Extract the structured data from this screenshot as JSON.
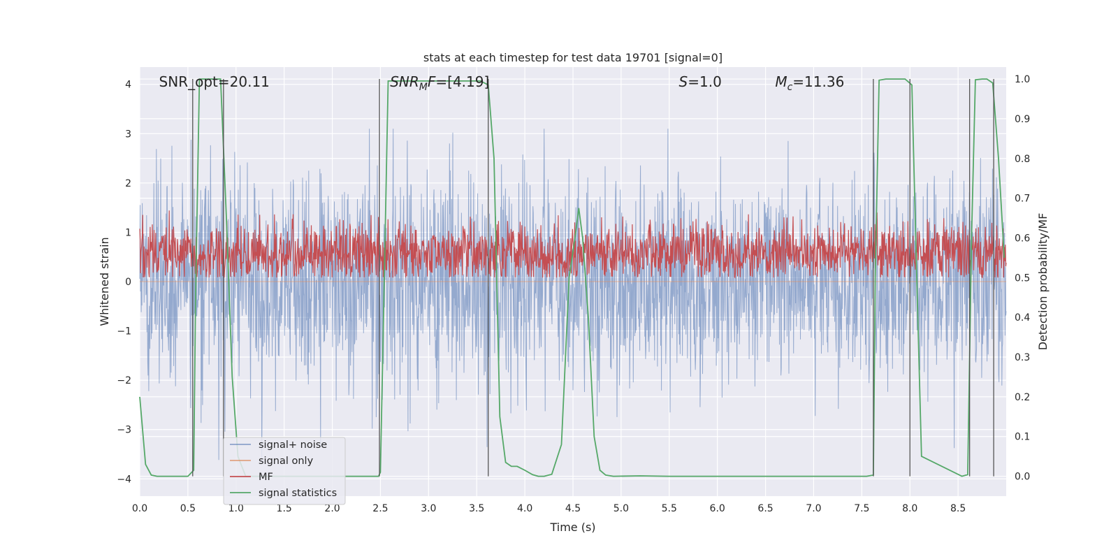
{
  "chart_data": {
    "type": "line",
    "title": "stats at each timestep for test data 19701 [signal=0]",
    "xlabel": "Time (s)",
    "ylabel_left": "Whitened strain",
    "ylabel_right": "Detection probability/MF",
    "xlim": [
      0.0,
      9.0
    ],
    "ylim_left": [
      -4.35,
      4.35
    ],
    "ylim_right": [
      -0.05,
      1.03
    ],
    "grid": true,
    "legend_position": "lower-left",
    "x_ticks": [
      "0.0",
      "0.5",
      "1.0",
      "1.5",
      "2.0",
      "2.5",
      "3.0",
      "3.5",
      "4.0",
      "4.5",
      "5.0",
      "5.5",
      "6.0",
      "6.5",
      "7.0",
      "7.5",
      "8.0",
      "8.5"
    ],
    "y_ticks_left": [
      "−4",
      "−3",
      "−2",
      "−1",
      "0",
      "1",
      "2",
      "3",
      "4"
    ],
    "y_ticks_right": [
      "0.0",
      "0.1",
      "0.2",
      "0.3",
      "0.4",
      "0.5",
      "0.6",
      "0.7",
      "0.8",
      "0.9",
      "1.0"
    ],
    "annotations": [
      {
        "text": "SNR_opt=20.11",
        "x": 0.2
      },
      {
        "text": "SNR_MF=[4.19]",
        "x": 2.6
      },
      {
        "text": "S=1.0",
        "x": 5.6
      },
      {
        "text": "M_c=11.36",
        "x": 6.6
      }
    ],
    "series": [
      {
        "name": "signal+ noise",
        "color": "#4c72b0",
        "axis": "left",
        "kind": "noise",
        "amplitude": 3.1
      },
      {
        "name": "signal only",
        "color": "#dd8452",
        "axis": "left",
        "kind": "flat",
        "value": 0.0
      },
      {
        "name": "MF",
        "color": "#c44e52",
        "axis": "right",
        "kind": "noise-band",
        "range": [
          0.5,
          0.62
        ]
      },
      {
        "name": "signal statistics",
        "color": "#55a868",
        "axis": "right",
        "kind": "line",
        "x": [
          0.0,
          0.06,
          0.12,
          0.18,
          0.3,
          0.5,
          0.56,
          0.58,
          0.62,
          0.72,
          0.84,
          0.9,
          0.96,
          1.02,
          1.1,
          2.4,
          2.48,
          2.5,
          2.54,
          2.58,
          3.54,
          3.62,
          3.68,
          3.74,
          3.8,
          3.86,
          3.92,
          4.0,
          4.08,
          4.14,
          4.2,
          4.28,
          4.38,
          4.46,
          4.52,
          4.56,
          4.6,
          4.66,
          4.72,
          4.78,
          4.84,
          4.92,
          5.2,
          5.5,
          7.55,
          7.62,
          7.64,
          7.68,
          7.75,
          7.95,
          8.02,
          8.06,
          8.12,
          8.54,
          8.6,
          8.64,
          8.68,
          8.75,
          8.8,
          8.86,
          8.92,
          8.98
        ],
        "values": [
          0.2,
          0.03,
          0.003,
          0.0,
          0.0,
          0.0,
          0.015,
          0.45,
          1.0,
          1.0,
          1.0,
          0.65,
          0.25,
          0.05,
          0.0,
          0.0,
          0.0,
          0.01,
          0.5,
          0.995,
          0.995,
          0.985,
          0.8,
          0.15,
          0.035,
          0.025,
          0.025,
          0.015,
          0.004,
          0.0,
          0.0,
          0.005,
          0.08,
          0.5,
          0.6,
          0.675,
          0.6,
          0.4,
          0.1,
          0.015,
          0.003,
          0.0,
          0.001,
          0.0,
          0.0,
          0.003,
          0.5,
          0.997,
          1.0,
          1.0,
          0.985,
          0.6,
          0.05,
          0.0,
          0.004,
          0.6,
          0.998,
          1.0,
          1.0,
          0.99,
          0.8,
          0.55
        ]
      }
    ],
    "vertical_markers_x": [
      0.55,
      0.87,
      2.49,
      3.62,
      7.62,
      8.0,
      8.62,
      8.87
    ]
  }
}
